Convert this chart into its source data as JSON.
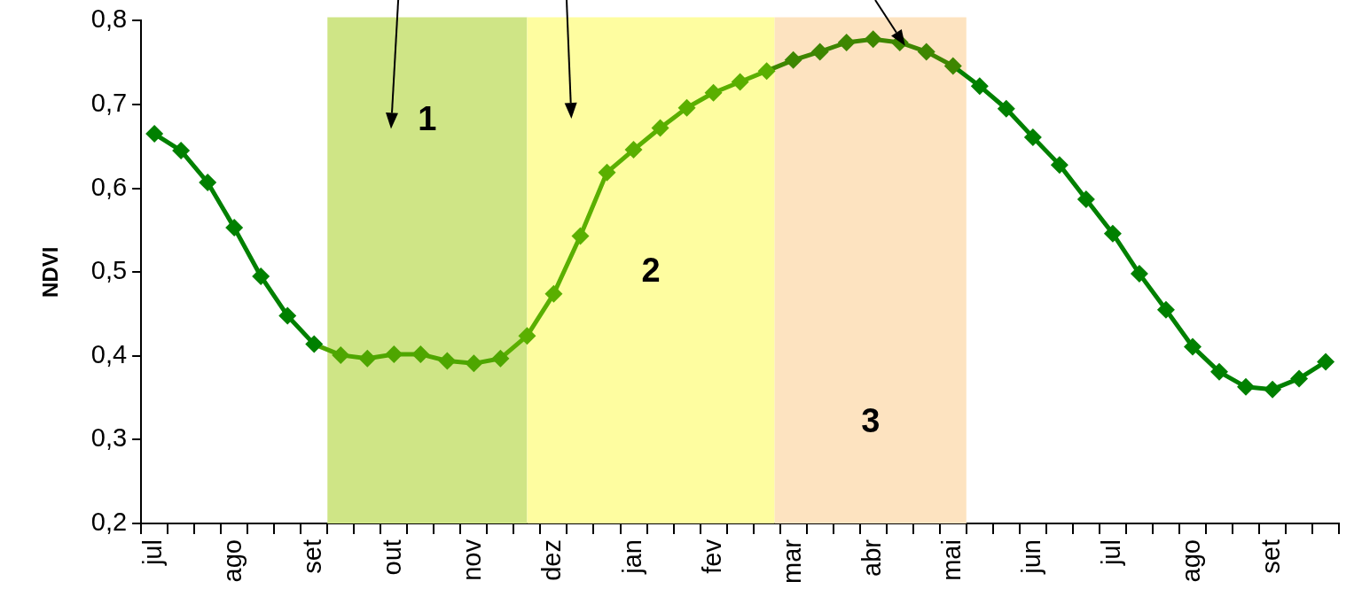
{
  "chart_data": {
    "type": "line",
    "ylabel": "NDVI",
    "categories": [
      "jul",
      null,
      null,
      "ago",
      null,
      null,
      "set",
      null,
      null,
      "out",
      null,
      null,
      "nov",
      null,
      null,
      "dez",
      null,
      null,
      "jan",
      null,
      null,
      "fev",
      null,
      null,
      "mar",
      null,
      null,
      "abr",
      null,
      null,
      "mai",
      null,
      null,
      "jun",
      null,
      null,
      "jul",
      null,
      null,
      "ago",
      null,
      null,
      "set",
      null,
      null
    ],
    "series": [
      {
        "color": "#008000",
        "values": [
          0.665,
          0.645,
          0.607,
          0.553,
          0.495,
          0.448,
          0.414,
          null,
          null,
          null,
          null,
          null,
          null,
          null,
          null,
          null,
          null,
          null,
          null,
          null,
          null,
          null,
          null,
          null,
          null,
          null,
          null,
          null,
          null,
          null,
          null,
          null,
          null,
          null,
          null,
          null,
          null,
          null,
          null,
          null,
          null,
          null,
          null,
          null,
          null
        ]
      },
      {
        "color": "#4ea600",
        "values": [
          null,
          null,
          null,
          null,
          null,
          null,
          0.414,
          0.401,
          0.397,
          0.402,
          0.402,
          0.394,
          0.391,
          0.397,
          null,
          null,
          null,
          null,
          null,
          null,
          null,
          null,
          null,
          null,
          null,
          null,
          null,
          null,
          null,
          null,
          null,
          null,
          null,
          null,
          null,
          null,
          null,
          null,
          null,
          null,
          null,
          null,
          null,
          null,
          null
        ]
      },
      {
        "color": "#5aaf00",
        "values": [
          null,
          null,
          null,
          null,
          null,
          null,
          null,
          null,
          null,
          null,
          null,
          null,
          null,
          0.397,
          0.424,
          0.474,
          0.543,
          0.619,
          0.646,
          0.672,
          0.696,
          0.714,
          0.727,
          0.74,
          null,
          null,
          null,
          null,
          null,
          null,
          null,
          null,
          null,
          null,
          null,
          null,
          null,
          null,
          null,
          null,
          null,
          null,
          null,
          null,
          null
        ]
      },
      {
        "color": "#3e8600",
        "values": [
          null,
          null,
          null,
          null,
          null,
          null,
          null,
          null,
          null,
          null,
          null,
          null,
          null,
          null,
          null,
          null,
          null,
          null,
          null,
          null,
          null,
          null,
          null,
          0.74,
          0.753,
          0.763,
          0.774,
          0.778,
          0.774,
          0.763,
          0.746,
          null,
          null,
          null,
          null,
          null,
          null,
          null,
          null,
          null,
          null,
          null,
          null,
          null,
          null
        ]
      },
      {
        "color": "#008000",
        "values": [
          null,
          null,
          null,
          null,
          null,
          null,
          null,
          null,
          null,
          null,
          null,
          null,
          null,
          null,
          null,
          null,
          null,
          null,
          null,
          null,
          null,
          null,
          null,
          null,
          null,
          null,
          null,
          null,
          null,
          null,
          0.746,
          0.722,
          0.695,
          0.661,
          0.628,
          0.587,
          0.546,
          0.498,
          0.455,
          0.411,
          0.381,
          0.363,
          0.36,
          0.373,
          0.393
        ]
      }
    ],
    "ylim": [
      0.2,
      0.8
    ],
    "yticks": [
      {
        "value": 0.2,
        "label": "0,2"
      },
      {
        "value": 0.3,
        "label": "0,3"
      },
      {
        "value": 0.4,
        "label": "0,4"
      },
      {
        "value": 0.5,
        "label": "0,5"
      },
      {
        "value": 0.6,
        "label": "0,6"
      },
      {
        "value": 0.7,
        "label": "0,7"
      },
      {
        "value": 0.8,
        "label": "0,8"
      }
    ],
    "annotations": [
      "1",
      "2",
      "3"
    ],
    "grid": false,
    "legend": false,
    "marker": "diamond",
    "line_style": "solid"
  }
}
